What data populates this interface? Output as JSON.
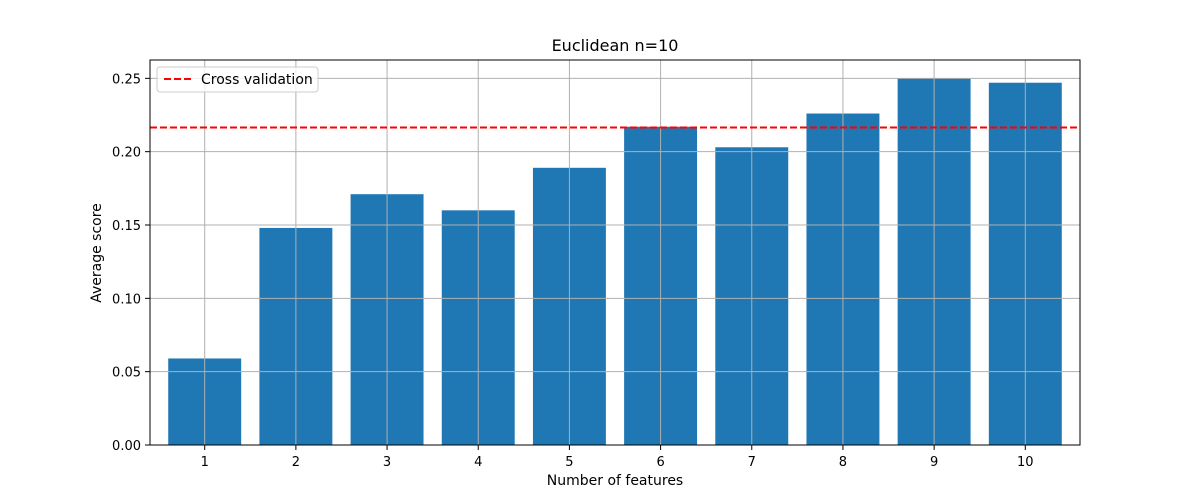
{
  "chart_data": {
    "type": "bar",
    "title": "Euclidean n=10",
    "xlabel": "Number of features",
    "ylabel": "Average score",
    "categories": [
      "1",
      "2",
      "3",
      "4",
      "5",
      "6",
      "7",
      "8",
      "9",
      "10"
    ],
    "values": [
      0.059,
      0.148,
      0.171,
      0.16,
      0.189,
      0.217,
      0.203,
      0.226,
      0.25,
      0.247
    ],
    "ylim": [
      0,
      0.2625
    ],
    "yticks": [
      "0.00",
      "0.05",
      "0.10",
      "0.15",
      "0.20",
      "0.25"
    ],
    "reference_line": {
      "name": "Cross validation",
      "value": 0.2165,
      "style": "dashed",
      "color": "#ff0000"
    },
    "bar_color": "#1f77b4",
    "grid": true,
    "legend_placement": "top-left"
  }
}
